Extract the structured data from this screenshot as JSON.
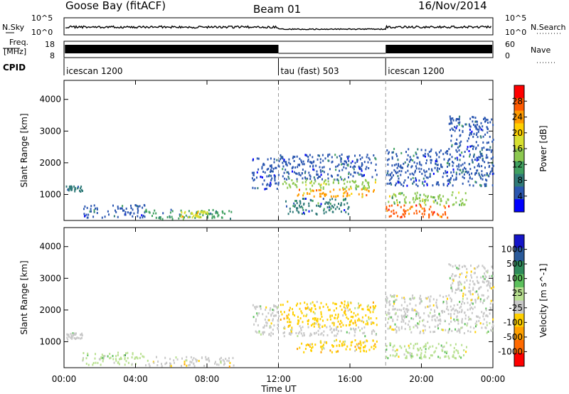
{
  "header": {
    "station": "Goose Bay (fitACF)",
    "beam": "Beam 01",
    "date": "16/Nov/2014"
  },
  "strips": {
    "nsky_label": "N.Sky",
    "nsky_ticks": [
      "10^5",
      "10^0"
    ],
    "nsearch_label": "N.Search",
    "nsearch_ticks": [
      "10^5",
      "10^0"
    ],
    "freq_label_1": "Freq.",
    "freq_label_2": "[MHz]",
    "freq_ticks": [
      "18",
      "8"
    ],
    "nave_label": "Nave",
    "nave_ticks": [
      "60",
      "0"
    ],
    "cpid_label": "CPID",
    "cpid_segments": [
      {
        "label": "icescan 1200",
        "start_hour": 0,
        "end_hour": 12
      },
      {
        "label": "tau (fast) 503",
        "start_hour": 12,
        "end_hour": 18
      },
      {
        "label": "icescan 1200",
        "start_hour": 18,
        "end_hour": 24
      }
    ]
  },
  "colorbars": {
    "power": {
      "label": "Power [dB]",
      "ticks": [
        "28",
        "24",
        "20",
        "16",
        "12",
        "8",
        "4"
      ],
      "colors": [
        "#ff0000",
        "#ff5a00",
        "#ff9a00",
        "#ffd000",
        "#d8e030",
        "#8cc850",
        "#40a060",
        "#2f7a78",
        "#2a56b0",
        "#0000ff"
      ]
    },
    "velocity": {
      "label": "Velocity [m s^-1]",
      "ticks": [
        "1000",
        "500",
        "100",
        "25",
        "-25",
        "-100",
        "-500",
        "-1000"
      ],
      "colors": [
        "#1515c8",
        "#2a5a9a",
        "#2f8a5a",
        "#5cc05c",
        "#b8e090",
        "#c8c8c8",
        "#ffd000",
        "#ffa000",
        "#ff6a00",
        "#ff0000"
      ]
    }
  },
  "chart_data": [
    {
      "type": "heatmap",
      "parameter": "Power",
      "ylabel": "Slant Range [km]",
      "xlabel": "Time UT",
      "x_ticks": [
        "00:00",
        "04:00",
        "08:00",
        "12:00",
        "16:00",
        "20:00",
        "00:00"
      ],
      "x_range_hours": [
        0,
        24
      ],
      "y_ticks": [
        1000,
        2000,
        3000,
        4000
      ],
      "ylim": [
        180,
        4600
      ],
      "unit": "dB",
      "scale_range": [
        0,
        30
      ],
      "regions": [
        {
          "t0": 0.1,
          "t1": 1.0,
          "r0": 1100,
          "r1": 1300,
          "value": 8
        },
        {
          "t0": 1.0,
          "t1": 4.5,
          "r0": 300,
          "r1": 700,
          "value": 6
        },
        {
          "t0": 4.5,
          "t1": 9.5,
          "r0": 250,
          "r1": 550,
          "value": 10
        },
        {
          "t0": 6.5,
          "t1": 8.0,
          "r0": 300,
          "r1": 500,
          "value": 18
        },
        {
          "t0": 10.5,
          "t1": 12.0,
          "r0": 1200,
          "r1": 2200,
          "value": 6
        },
        {
          "t0": 12.0,
          "t1": 17.5,
          "r0": 1500,
          "r1": 2300,
          "value": 6
        },
        {
          "t0": 12.2,
          "t1": 17.5,
          "r0": 1200,
          "r1": 1500,
          "value": 14
        },
        {
          "t0": 13.0,
          "t1": 17.5,
          "r0": 950,
          "r1": 1200,
          "value": 22
        },
        {
          "t0": 12.2,
          "t1": 16.0,
          "r0": 400,
          "r1": 900,
          "value": 7
        },
        {
          "t0": 18.0,
          "t1": 24.0,
          "r0": 1300,
          "r1": 2500,
          "value": 6
        },
        {
          "t0": 18.0,
          "t1": 22.5,
          "r0": 700,
          "r1": 1100,
          "value": 14
        },
        {
          "t0": 18.0,
          "t1": 21.5,
          "r0": 300,
          "r1": 700,
          "value": 24
        },
        {
          "t0": 21.5,
          "t1": 24.0,
          "r0": 2500,
          "r1": 3500,
          "value": 5
        }
      ]
    },
    {
      "type": "heatmap",
      "parameter": "Velocity",
      "ylabel": "Slant Range [km]",
      "xlabel": "Time UT",
      "x_ticks": [
        "00:00",
        "04:00",
        "08:00",
        "12:00",
        "16:00",
        "20:00",
        "00:00"
      ],
      "x_range_hours": [
        0,
        24
      ],
      "y_ticks": [
        1000,
        2000,
        3000,
        4000
      ],
      "ylim": [
        180,
        4600
      ],
      "unit": "m s^-1",
      "scale_range": [
        -1000,
        1000
      ],
      "regions": [
        {
          "t0": 0.1,
          "t1": 1.0,
          "r0": 1100,
          "r1": 1300,
          "value": 0
        },
        {
          "t0": 1.0,
          "t1": 4.5,
          "r0": 300,
          "r1": 700,
          "value": 120
        },
        {
          "t0": 4.5,
          "t1": 9.5,
          "r0": 250,
          "r1": 550,
          "value": -150
        },
        {
          "t0": 10.5,
          "t1": 12.0,
          "r0": 1200,
          "r1": 2200,
          "value": 0
        },
        {
          "t0": 12.0,
          "t1": 17.5,
          "r0": 1500,
          "r1": 2300,
          "value": -200
        },
        {
          "t0": 12.2,
          "t1": 17.5,
          "r0": 1200,
          "r1": 1500,
          "value": 0
        },
        {
          "t0": 13.0,
          "t1": 17.5,
          "r0": 700,
          "r1": 1100,
          "value": -300
        },
        {
          "t0": 18.0,
          "t1": 24.0,
          "r0": 1300,
          "r1": 2500,
          "value": 0
        },
        {
          "t0": 18.0,
          "t1": 22.5,
          "r0": 500,
          "r1": 1000,
          "value": 60
        },
        {
          "t0": 21.5,
          "t1": 24.0,
          "r0": 2500,
          "r1": 3500,
          "value": 0
        }
      ]
    }
  ]
}
